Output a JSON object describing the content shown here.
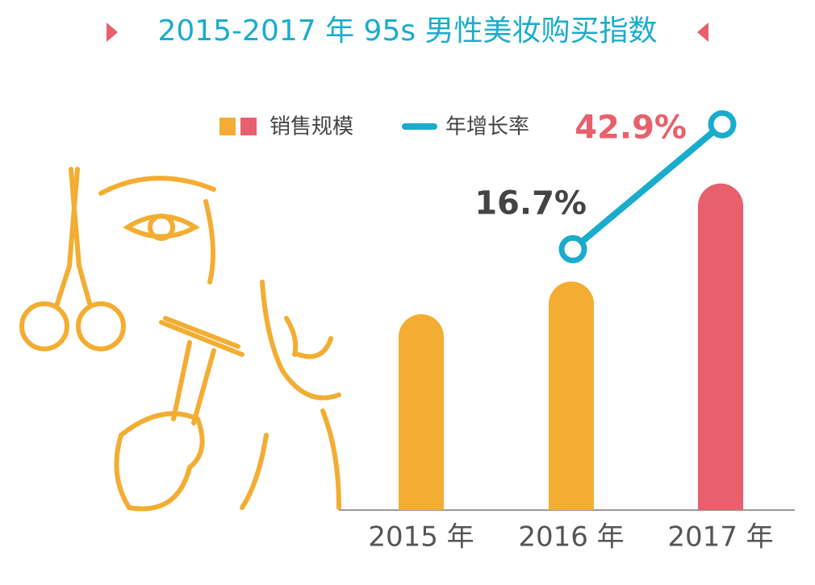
{
  "chart_data": {
    "type": "bar",
    "title": "2015-2017 年 95s 男性美妆购买指数",
    "categories": [
      "2015 年",
      "2016 年",
      "2017 年"
    ],
    "ylim": [
      0,
      207
    ],
    "y2lim": [
      -38,
      47
    ],
    "series": [
      {
        "name": "销售规模",
        "type": "bar",
        "colors": [
          "#f3ad32",
          "#f3ad32",
          "#e8606c"
        ],
        "values": [
          100,
          116.7,
          166.8
        ]
      },
      {
        "name": "年增长率",
        "type": "line",
        "axis": "y2",
        "color": "#1aaccc",
        "values": [
          null,
          16.7,
          42.9
        ],
        "value_labels": [
          null,
          "16.7%",
          "42.9%"
        ],
        "label_colors": [
          null,
          "#444444",
          "#e8606c"
        ]
      }
    ]
  }
}
